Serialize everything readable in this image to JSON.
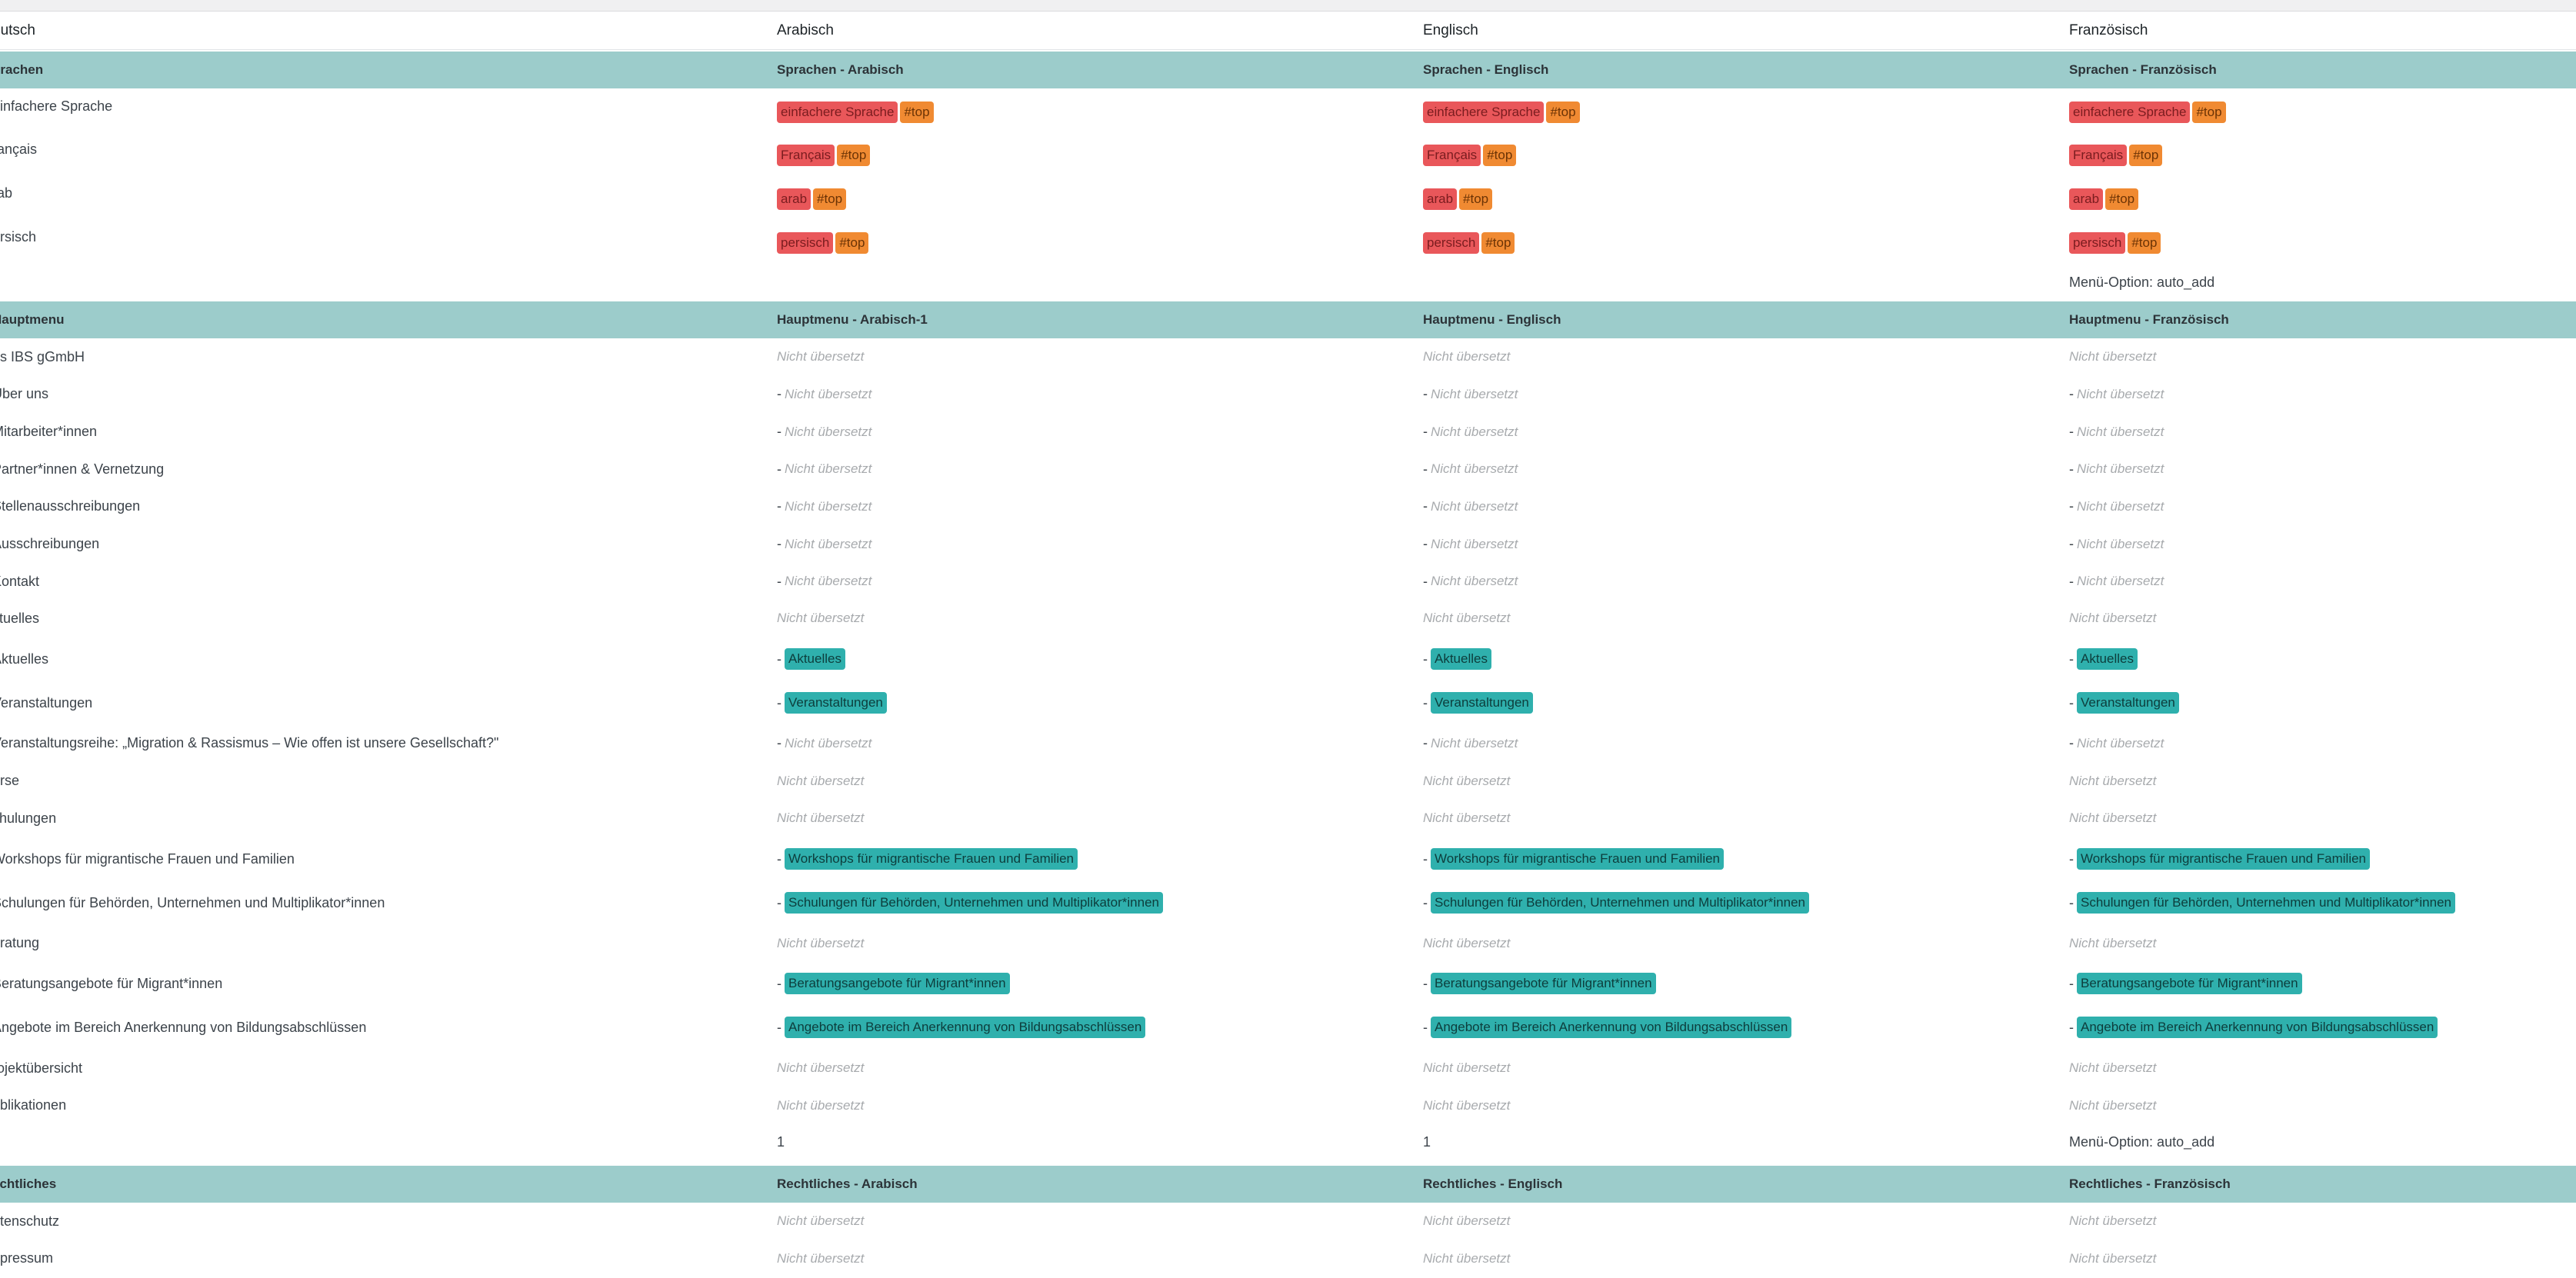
{
  "header": [
    "eutsch",
    "Arabisch",
    "Englisch",
    "Französisch"
  ],
  "sections": [
    {
      "title": [
        "prachen",
        "Sprachen - Arabisch",
        "Sprachen - Englisch",
        "Sprachen - Französisch"
      ],
      "rows": [
        {
          "label": "einfachere Sprache",
          "type": "lang",
          "tag": "einfachere Sprache",
          "anchor": "#top"
        },
        {
          "label": "rançais",
          "type": "lang",
          "tag": "Français",
          "anchor": "#top"
        },
        {
          "label": "rab",
          "type": "lang",
          "tag": "arab",
          "anchor": "#top"
        },
        {
          "label": "ersisch",
          "type": "lang",
          "tag": "persisch",
          "anchor": "#top"
        },
        {
          "label": "",
          "type": "option",
          "values": [
            "",
            "",
            "Menü-Option: auto_add"
          ]
        }
      ]
    },
    {
      "title": [
        "Hauptmenu",
        "Hauptmenu - Arabisch-1",
        "Hauptmenu - Englisch",
        "Hauptmenu - Französisch"
      ],
      "rows": [
        {
          "label": "as IBS gGmbH",
          "type": "nt",
          "dash": false,
          "value": "Nicht übersetzt"
        },
        {
          "label": "Über uns",
          "type": "nt",
          "dash": true,
          "value": "Nicht übersetzt"
        },
        {
          "label": "Mitarbeiter*innen",
          "type": "nt",
          "dash": true,
          "value": "Nicht übersetzt"
        },
        {
          "label": "Partner*innen & Vernetzung",
          "type": "nt",
          "dash": true,
          "value": "Nicht übersetzt"
        },
        {
          "label": "Stellenausschreibungen",
          "type": "nt",
          "dash": true,
          "value": "Nicht übersetzt"
        },
        {
          "label": "Ausschreibungen",
          "type": "nt",
          "dash": true,
          "value": "Nicht übersetzt"
        },
        {
          "label": "Kontakt",
          "type": "nt",
          "dash": true,
          "value": "Nicht übersetzt"
        },
        {
          "label": "ktuelles",
          "type": "nt",
          "dash": false,
          "value": "Nicht übersetzt"
        },
        {
          "label": "Aktuelles",
          "type": "tag",
          "value": "Aktuelles"
        },
        {
          "label": "Veranstaltungen",
          "type": "tag",
          "value": "Veranstaltungen"
        },
        {
          "label": "Veranstaltungsreihe: „Migration & Rassismus – Wie offen ist unsere Gesellschaft?\"",
          "type": "nt",
          "dash": true,
          "value": "Nicht übersetzt"
        },
        {
          "label": "urse",
          "type": "nt",
          "dash": false,
          "value": "Nicht übersetzt"
        },
        {
          "label": "chulungen",
          "type": "nt",
          "dash": false,
          "value": "Nicht übersetzt"
        },
        {
          "label": "Workshops für migrantische Frauen und Familien",
          "type": "tag",
          "value": "Workshops für migrantische Frauen und Familien"
        },
        {
          "label": "Schulungen für Behörden, Unternehmen und Multiplikator*innen",
          "type": "tag",
          "value": "Schulungen für Behörden, Unternehmen und Multiplikator*innen"
        },
        {
          "label": "eratung",
          "type": "nt",
          "dash": false,
          "value": "Nicht übersetzt"
        },
        {
          "label": "Beratungsangebote für Migrant*innen",
          "type": "tag",
          "value": "Beratungsangebote für Migrant*innen"
        },
        {
          "label": "Angebote im Bereich Anerkennung von Bildungsabschlüssen",
          "type": "tag",
          "value": "Angebote im Bereich Anerkennung von Bildungsabschlüssen"
        },
        {
          "label": "rojektübersicht",
          "type": "nt",
          "dash": false,
          "value": "Nicht übersetzt"
        },
        {
          "label": "ublikationen",
          "type": "nt",
          "dash": false,
          "value": "Nicht übersetzt"
        },
        {
          "label": "",
          "type": "option",
          "values": [
            "1",
            "1",
            "Menü-Option: auto_add"
          ]
        }
      ]
    },
    {
      "title": [
        "echtliches",
        "Rechtliches - Arabisch",
        "Rechtliches - Englisch",
        "Rechtliches - Französisch"
      ],
      "rows": [
        {
          "label": "atenschutz",
          "type": "nt",
          "dash": false,
          "value": "Nicht übersetzt"
        },
        {
          "label": "npressum",
          "type": "nt",
          "dash": false,
          "value": "Nicht übersetzt"
        }
      ]
    }
  ],
  "colors": {
    "section_bg": "#9ccccb",
    "tag_red": "#e9575a",
    "tag_orange": "#f08a32",
    "tag_teal": "#2fb0ad"
  }
}
